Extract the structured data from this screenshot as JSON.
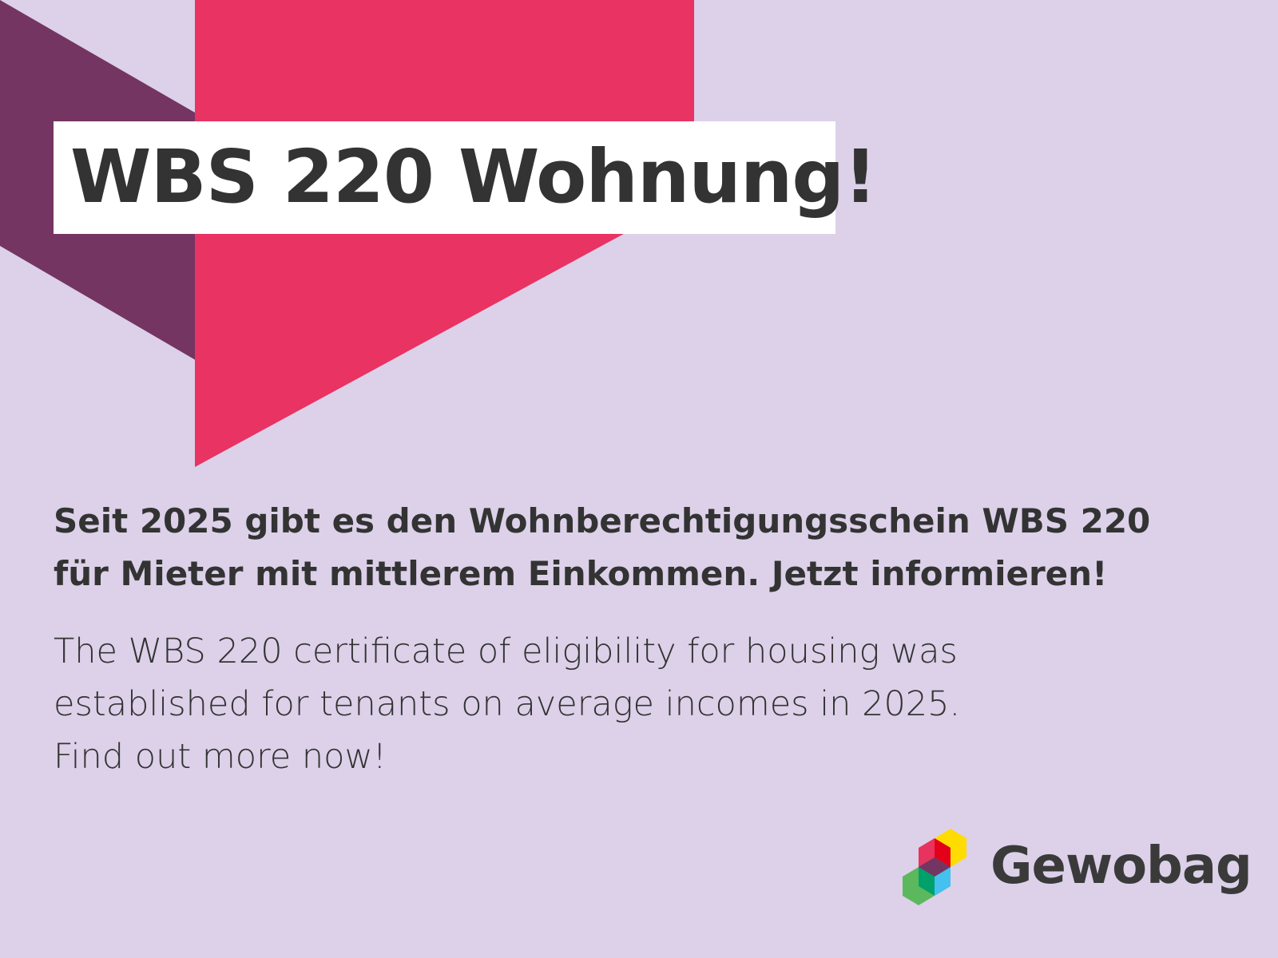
{
  "colors": {
    "background": "#dcd1e9",
    "pink": "#e83363",
    "purple": "#743563",
    "text": "#333333"
  },
  "headline": "WBS 220 Wohnung!",
  "german_text": [
    "Seit 2025 gibt es den Wohnberechtigungsschein WBS 220",
    "für Mieter mit mittlerem Einkommen. Jetzt informieren!"
  ],
  "english_text": [
    "The WBS 220 certificate of eligibility for housing was",
    "established for tenants on average incomes in 2025.",
    "Find out more now!"
  ],
  "logo": {
    "name": "Gewobag",
    "icon": "cube-logo-icon"
  }
}
